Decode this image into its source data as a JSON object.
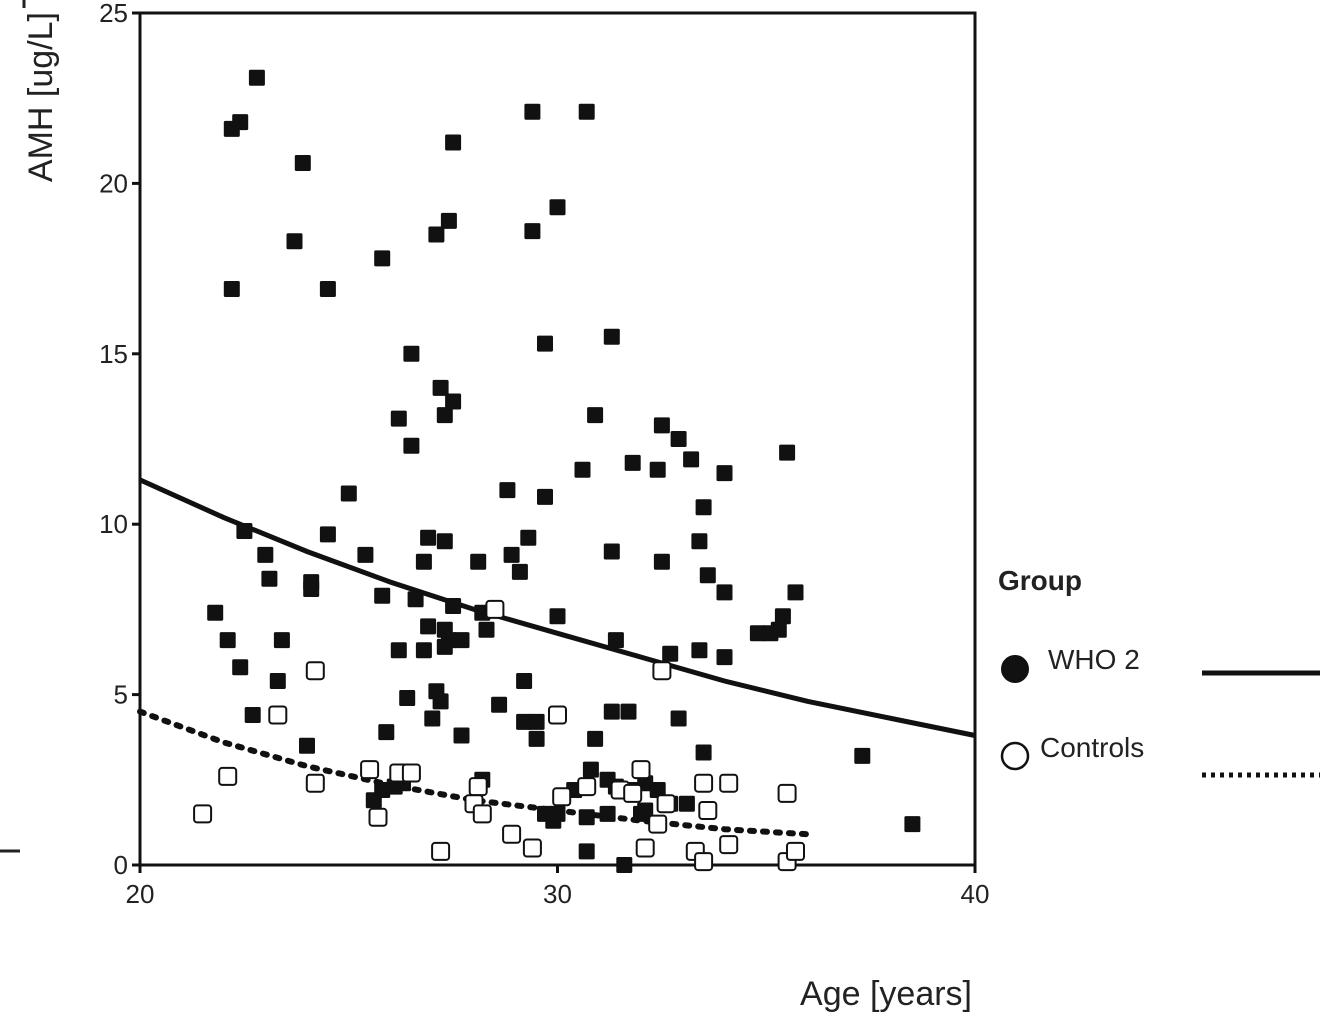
{
  "chart_data": {
    "type": "scatter",
    "title": "",
    "xlabel": "Age [years]",
    "ylabel": "AMH [ug/L]",
    "xlim": [
      20,
      40
    ],
    "ylim": [
      0,
      25
    ],
    "xticks": [
      "20",
      "30",
      "40"
    ],
    "yticks": [
      "0",
      "5",
      "10",
      "15",
      "20",
      "25"
    ],
    "grid": false,
    "legend": {
      "title": "Group",
      "placement": "right",
      "entries": [
        "WHO 2",
        "Controls"
      ]
    },
    "colors": {
      "ink": "#111111",
      "background": "#ffffff"
    },
    "series": [
      {
        "name": "WHO 2",
        "marker": "filled-square",
        "fit_line": [
          [
            20,
            11.3
          ],
          [
            22,
            10.2
          ],
          [
            24,
            9.2
          ],
          [
            26,
            8.3
          ],
          [
            28,
            7.5
          ],
          [
            30,
            6.8
          ],
          [
            32,
            6.1
          ],
          [
            34,
            5.4
          ],
          [
            36,
            4.8
          ],
          [
            38,
            4.3
          ],
          [
            40,
            3.8
          ]
        ],
        "points": [
          [
            22.8,
            23.1
          ],
          [
            22.2,
            21.6
          ],
          [
            22.4,
            21.8
          ],
          [
            23.9,
            20.6
          ],
          [
            27.5,
            21.2
          ],
          [
            29.4,
            22.1
          ],
          [
            30.7,
            22.1
          ],
          [
            23.7,
            18.3
          ],
          [
            25.8,
            17.8
          ],
          [
            22.2,
            16.9
          ],
          [
            24.5,
            16.9
          ],
          [
            27.1,
            18.5
          ],
          [
            27.4,
            18.9
          ],
          [
            29.4,
            18.6
          ],
          [
            30.0,
            19.3
          ],
          [
            29.7,
            15.3
          ],
          [
            31.3,
            15.5
          ],
          [
            26.5,
            15.0
          ],
          [
            26.2,
            13.1
          ],
          [
            27.2,
            14.0
          ],
          [
            27.5,
            13.6
          ],
          [
            27.3,
            13.2
          ],
          [
            26.5,
            12.3
          ],
          [
            30.9,
            13.2
          ],
          [
            32.5,
            12.9
          ],
          [
            32.9,
            12.5
          ],
          [
            33.2,
            11.9
          ],
          [
            35.5,
            12.1
          ],
          [
            34.0,
            11.5
          ],
          [
            30.6,
            11.6
          ],
          [
            31.8,
            11.8
          ],
          [
            32.4,
            11.6
          ],
          [
            25.0,
            10.9
          ],
          [
            28.8,
            11.0
          ],
          [
            29.7,
            10.8
          ],
          [
            33.5,
            10.5
          ],
          [
            22.5,
            9.8
          ],
          [
            24.5,
            9.7
          ],
          [
            26.9,
            9.6
          ],
          [
            27.3,
            9.5
          ],
          [
            29.3,
            9.6
          ],
          [
            33.4,
            9.5
          ],
          [
            23.0,
            9.1
          ],
          [
            25.4,
            9.1
          ],
          [
            26.8,
            8.9
          ],
          [
            28.1,
            8.9
          ],
          [
            28.9,
            9.1
          ],
          [
            31.3,
            9.2
          ],
          [
            32.5,
            8.9
          ],
          [
            23.1,
            8.4
          ],
          [
            24.1,
            8.3
          ],
          [
            24.1,
            8.1
          ],
          [
            29.1,
            8.6
          ],
          [
            33.6,
            8.5
          ],
          [
            34.0,
            8.0
          ],
          [
            35.7,
            8.0
          ],
          [
            25.8,
            7.9
          ],
          [
            26.6,
            7.8
          ],
          [
            27.5,
            7.6
          ],
          [
            28.2,
            7.4
          ],
          [
            21.8,
            7.4
          ],
          [
            30.0,
            7.3
          ],
          [
            35.4,
            7.3
          ],
          [
            34.8,
            6.8
          ],
          [
            35.1,
            6.8
          ],
          [
            35.3,
            6.9
          ],
          [
            26.9,
            7.0
          ],
          [
            27.3,
            6.9
          ],
          [
            28.3,
            6.9
          ],
          [
            22.1,
            6.6
          ],
          [
            23.4,
            6.6
          ],
          [
            27.4,
            6.6
          ],
          [
            27.7,
            6.6
          ],
          [
            31.4,
            6.6
          ],
          [
            26.2,
            6.3
          ],
          [
            26.8,
            6.3
          ],
          [
            27.3,
            6.4
          ],
          [
            32.7,
            6.2
          ],
          [
            33.4,
            6.3
          ],
          [
            34.0,
            6.1
          ],
          [
            22.4,
            5.8
          ],
          [
            23.3,
            5.4
          ],
          [
            29.2,
            5.4
          ],
          [
            26.4,
            4.9
          ],
          [
            27.1,
            5.1
          ],
          [
            27.2,
            4.8
          ],
          [
            28.6,
            4.7
          ],
          [
            22.7,
            4.4
          ],
          [
            27.0,
            4.3
          ],
          [
            29.2,
            4.2
          ],
          [
            29.5,
            4.2
          ],
          [
            31.3,
            4.5
          ],
          [
            31.7,
            4.5
          ],
          [
            32.9,
            4.3
          ],
          [
            25.9,
            3.9
          ],
          [
            27.7,
            3.8
          ],
          [
            29.5,
            3.7
          ],
          [
            30.9,
            3.7
          ],
          [
            24.0,
            3.5
          ],
          [
            33.5,
            3.3
          ],
          [
            37.3,
            3.2
          ],
          [
            30.8,
            2.8
          ],
          [
            31.2,
            2.5
          ],
          [
            31.4,
            2.3
          ],
          [
            25.8,
            2.2
          ],
          [
            26.1,
            2.3
          ],
          [
            26.3,
            2.4
          ],
          [
            28.2,
            2.5
          ],
          [
            30.4,
            2.2
          ],
          [
            31.8,
            2.2
          ],
          [
            32.1,
            2.4
          ],
          [
            32.4,
            2.2
          ],
          [
            25.6,
            1.9
          ],
          [
            30.0,
            1.5
          ],
          [
            29.7,
            1.5
          ],
          [
            29.9,
            1.3
          ],
          [
            30.7,
            1.4
          ],
          [
            31.2,
            1.5
          ],
          [
            32.0,
            1.5
          ],
          [
            32.7,
            1.8
          ],
          [
            33.1,
            1.8
          ],
          [
            38.5,
            1.2
          ],
          [
            30.7,
            0.4
          ],
          [
            31.6,
            0.0
          ],
          [
            32.1,
            1.6
          ]
        ]
      },
      {
        "name": "Controls",
        "marker": "open-square",
        "fit_line": [
          [
            20,
            4.5
          ],
          [
            22,
            3.6
          ],
          [
            24,
            2.9
          ],
          [
            26,
            2.35
          ],
          [
            28,
            1.9
          ],
          [
            30,
            1.6
          ],
          [
            32,
            1.3
          ],
          [
            34,
            1.05
          ],
          [
            36,
            0.9
          ]
        ],
        "points": [
          [
            21.5,
            1.5
          ],
          [
            22.1,
            2.6
          ],
          [
            23.3,
            4.4
          ],
          [
            24.2,
            5.7
          ],
          [
            24.2,
            2.4
          ],
          [
            25.5,
            2.8
          ],
          [
            25.7,
            1.4
          ],
          [
            26.2,
            2.7
          ],
          [
            26.5,
            2.7
          ],
          [
            27.2,
            0.4
          ],
          [
            28.1,
            2.3
          ],
          [
            28.0,
            1.8
          ],
          [
            28.2,
            1.5
          ],
          [
            28.5,
            7.5
          ],
          [
            28.9,
            0.9
          ],
          [
            29.4,
            0.5
          ],
          [
            30.0,
            4.4
          ],
          [
            30.1,
            2.0
          ],
          [
            30.7,
            2.3
          ],
          [
            31.5,
            2.2
          ],
          [
            31.8,
            2.1
          ],
          [
            32.0,
            2.8
          ],
          [
            32.1,
            0.5
          ],
          [
            32.4,
            1.2
          ],
          [
            32.6,
            1.8
          ],
          [
            32.5,
            5.7
          ],
          [
            33.3,
            0.4
          ],
          [
            33.5,
            0.1
          ],
          [
            33.6,
            1.6
          ],
          [
            33.5,
            2.4
          ],
          [
            34.1,
            2.4
          ],
          [
            34.1,
            0.6
          ],
          [
            35.5,
            0.1
          ],
          [
            35.5,
            2.1
          ],
          [
            35.7,
            0.4
          ]
        ]
      }
    ]
  }
}
